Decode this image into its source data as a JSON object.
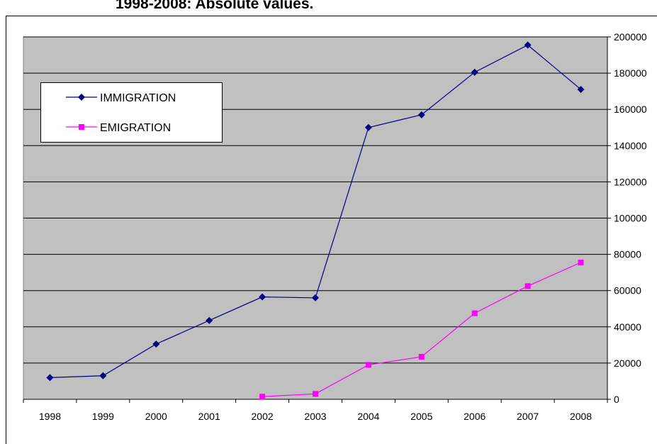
{
  "chart_data": {
    "type": "line",
    "title": "1998-2008: Absolute values.",
    "categories": [
      "1998",
      "1999",
      "2000",
      "2001",
      "2002",
      "2003",
      "2004",
      "2005",
      "2006",
      "2007",
      "2008"
    ],
    "series": [
      {
        "name": "IMMIGRATION",
        "color": "#000080",
        "marker": "diamond",
        "values": [
          12000,
          13000,
          30500,
          43500,
          56500,
          56000,
          150000,
          157000,
          180500,
          195500,
          171000
        ]
      },
      {
        "name": "EMIGRATION",
        "color": "#ff00ff",
        "marker": "square",
        "values": [
          null,
          null,
          null,
          null,
          1500,
          3000,
          19000,
          23500,
          47500,
          62500,
          75500
        ]
      }
    ],
    "ylim": [
      0,
      200000
    ],
    "yticks": [
      0,
      20000,
      40000,
      60000,
      80000,
      100000,
      120000,
      140000,
      160000,
      180000,
      200000
    ],
    "grid": true,
    "legend": "upper left"
  }
}
